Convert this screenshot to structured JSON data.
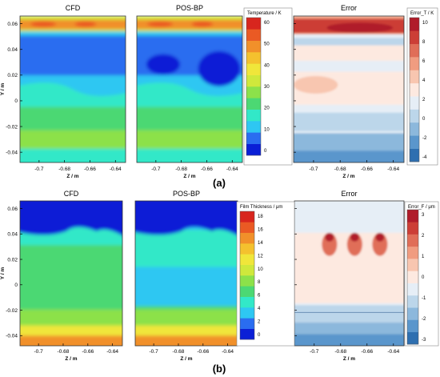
{
  "panel_labels": [
    "(a)",
    "(b)"
  ],
  "chart_data": [
    {
      "type": "heatmap",
      "row": "a",
      "colorbar_title": "Temperature / K",
      "colorbar_ticks": [
        "60",
        "50",
        "40",
        "30",
        "20",
        "10",
        "0"
      ],
      "colorbar_colors": [
        "#0a1fd6",
        "#2a6df0",
        "#2ec7f2",
        "#32e8c8",
        "#4cd873",
        "#8ce14a",
        "#cfe83c",
        "#f0e63a",
        "#f4c12e",
        "#f1902a",
        "#ea5a24",
        "#d8261e"
      ],
      "error_colorbar_title": "Error_T / K",
      "error_colorbar_ticks": [
        "10",
        "8",
        "6",
        "4",
        "2",
        "0",
        "-2",
        "-4"
      ],
      "error_colorbar_colors": [
        "#2e6fb0",
        "#5a96cc",
        "#8cb8dc",
        "#bcd6ea",
        "#e6eef6",
        "#fde9e0",
        "#f8c6b0",
        "#f09c80",
        "#e06e58",
        "#cc3e36",
        "#b01c2a"
      ],
      "xlabel": "Z / m",
      "ylabel": "Y / m",
      "x_ticks": [
        "-0.7",
        "-0.68",
        "-0.66",
        "-0.64"
      ],
      "y_ticks": [
        "0.06",
        "0.04",
        "0.02",
        "0",
        "-0.02",
        "-0.04"
      ],
      "x_range": [
        -0.715,
        -0.632
      ],
      "y_range": [
        -0.048,
        0.066
      ],
      "panels": [
        {
          "title": "CFD",
          "kind": "field",
          "field": "temperature",
          "error": false
        },
        {
          "title": "POS-BP",
          "kind": "field",
          "field": "temperature",
          "error": true
        },
        {
          "title": "Error",
          "kind": "error",
          "field": "temperature"
        }
      ]
    },
    {
      "type": "heatmap",
      "row": "b",
      "colorbar_title": "Film Thickness / μm",
      "colorbar_ticks": [
        "18",
        "16",
        "14",
        "12",
        "10",
        "8",
        "6",
        "4",
        "2",
        "0"
      ],
      "colorbar_colors": [
        "#0a1fd6",
        "#2a6df0",
        "#2ec7f2",
        "#32e8c8",
        "#4cd873",
        "#8ce14a",
        "#cfe83c",
        "#f0e63a",
        "#f4c12e",
        "#f1902a",
        "#ea5a24",
        "#d8261e"
      ],
      "error_colorbar_title": "Error_F / μm",
      "error_colorbar_ticks": [
        "3",
        "2",
        "1",
        "0",
        "-1",
        "-2",
        "-3"
      ],
      "error_colorbar_colors": [
        "#2e6fb0",
        "#5a96cc",
        "#8cb8dc",
        "#bcd6ea",
        "#e6eef6",
        "#fde9e0",
        "#f8c6b0",
        "#f09c80",
        "#e06e58",
        "#cc3e36",
        "#b01c2a"
      ],
      "xlabel": "Z / m",
      "ylabel": "Y / m",
      "x_ticks": [
        "-0.7",
        "-0.68",
        "-0.66",
        "-0.64"
      ],
      "y_ticks": [
        "0.06",
        "0.04",
        "0.02",
        "0",
        "-0.02",
        "-0.04"
      ],
      "x_range": [
        -0.715,
        -0.632
      ],
      "y_range": [
        -0.048,
        0.066
      ],
      "panels": [
        {
          "title": "CFD",
          "kind": "field",
          "field": "film",
          "error": false
        },
        {
          "title": "POS-BP",
          "kind": "field",
          "field": "film",
          "error": true
        },
        {
          "title": "Error",
          "kind": "error",
          "field": "film"
        }
      ]
    }
  ]
}
